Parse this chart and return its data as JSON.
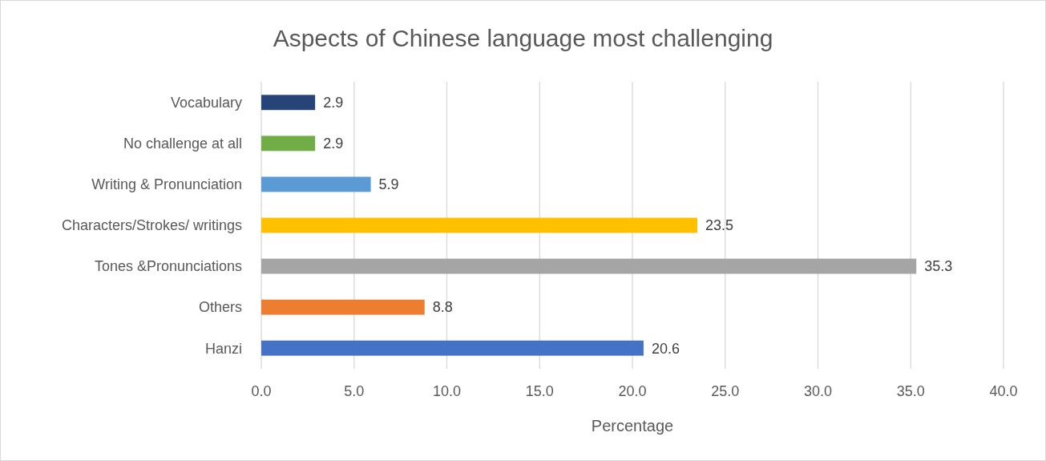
{
  "chart_data": {
    "type": "bar",
    "orientation": "horizontal",
    "title": "Aspects of Chinese language most challenging",
    "xlabel": "Percentage",
    "categories": [
      "Vocabulary",
      "No challenge at all",
      "Writing & Pronunciation",
      "Characters/Strokes/ writings",
      "Tones &Pronunciations",
      "Others",
      "Hanzi"
    ],
    "values": [
      2.9,
      2.9,
      5.9,
      23.5,
      35.3,
      8.8,
      20.6
    ],
    "colors": [
      "#264478",
      "#70ad47",
      "#5b9bd5",
      "#ffc000",
      "#a5a5a5",
      "#ed7d31",
      "#4472c4"
    ],
    "xlim": [
      0,
      40
    ],
    "xticks": [
      {
        "value": 0,
        "label": "0.0"
      },
      {
        "value": 5,
        "label": "5.0"
      },
      {
        "value": 10,
        "label": "10.0"
      },
      {
        "value": 15,
        "label": "15.0"
      },
      {
        "value": 20,
        "label": "20.0"
      },
      {
        "value": 25,
        "label": "25.0"
      },
      {
        "value": 30,
        "label": "30.0"
      },
      {
        "value": 35,
        "label": "35.0"
      },
      {
        "value": 40,
        "label": "40.0"
      }
    ],
    "grid": "x",
    "data_labels": true
  }
}
